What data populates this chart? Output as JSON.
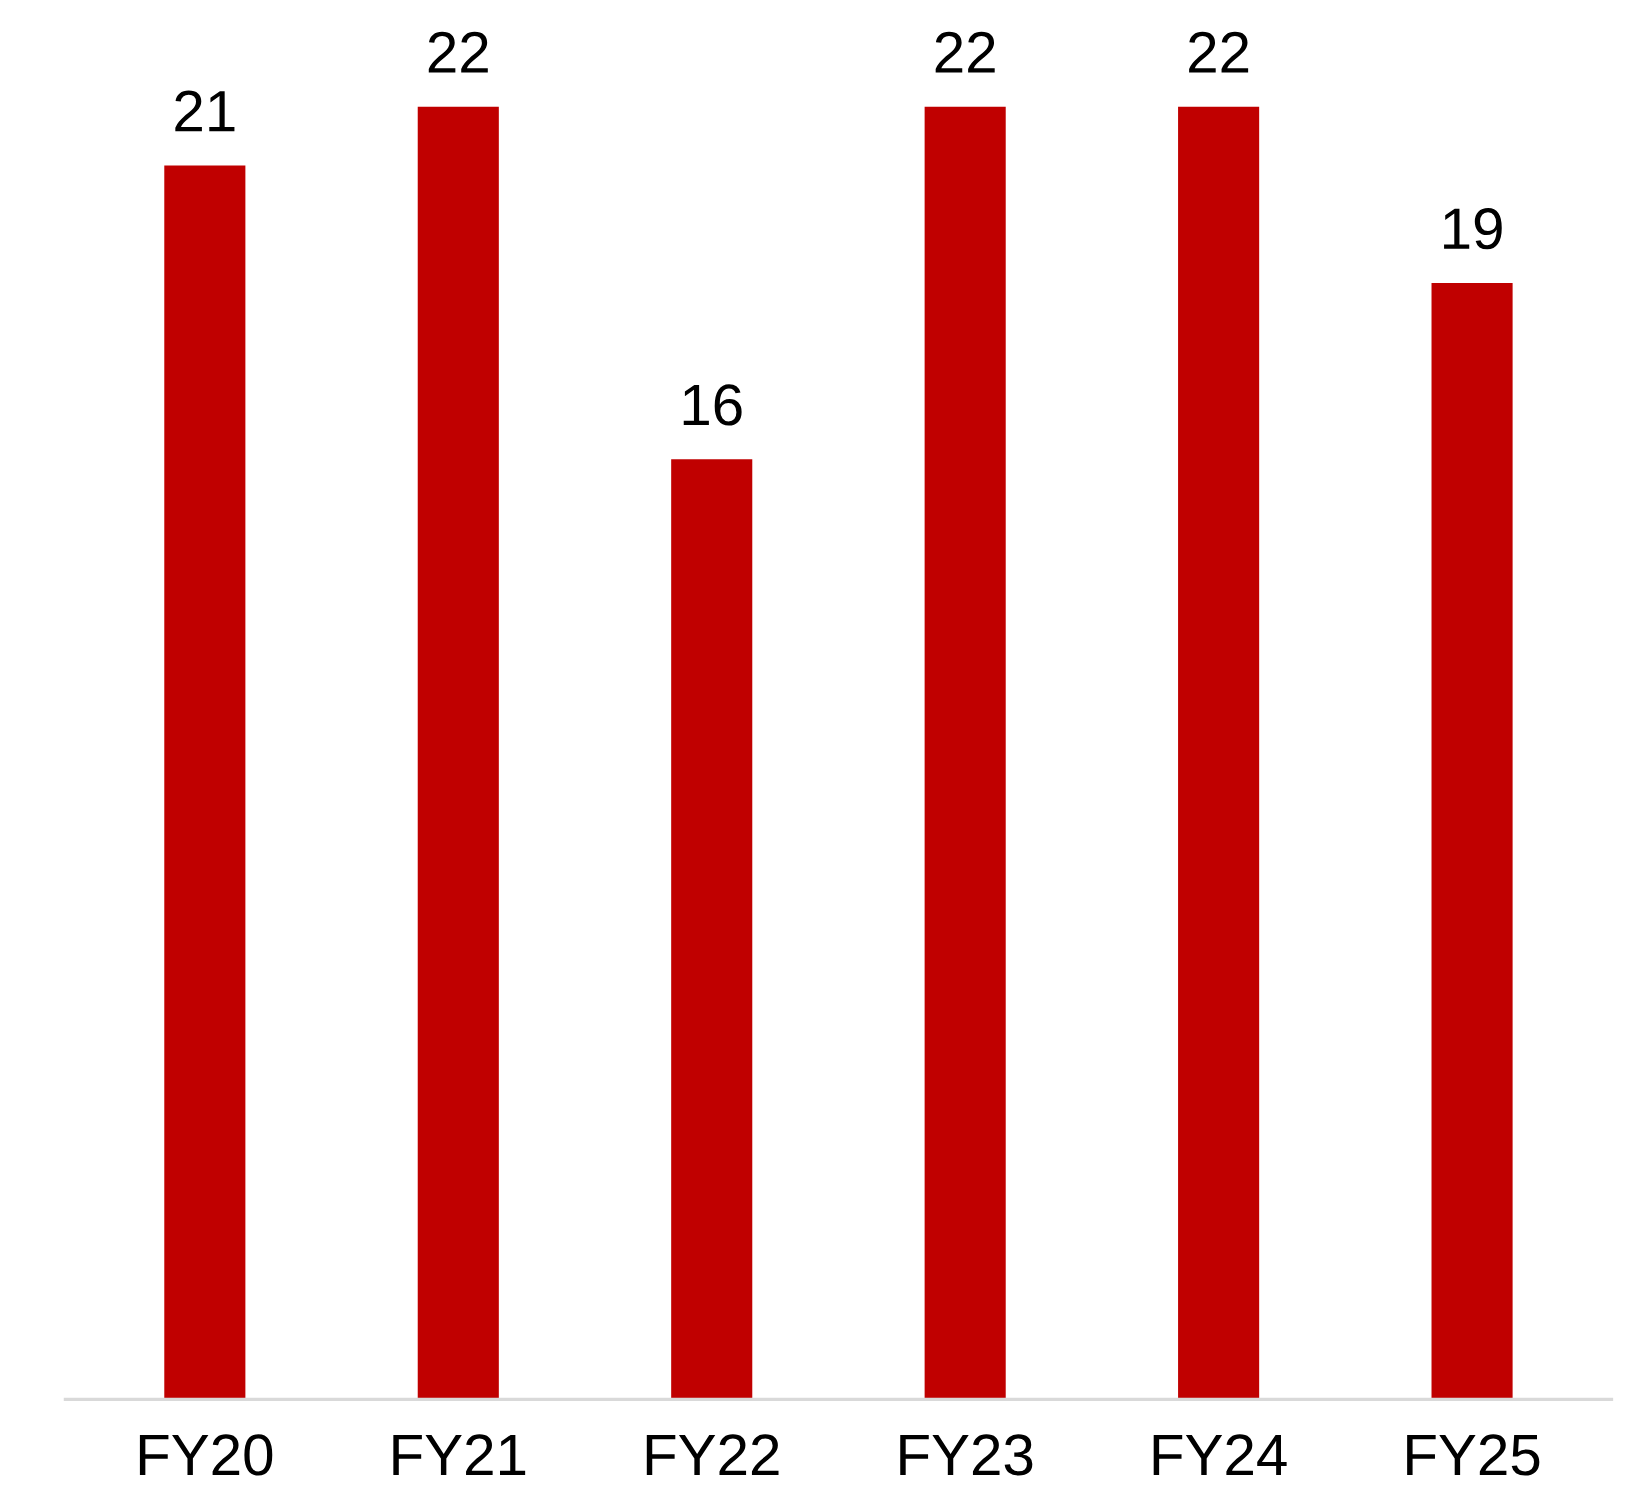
{
  "chart_data": {
    "type": "bar",
    "categories": [
      "FY20",
      "FY21",
      "FY22",
      "FY23",
      "FY24",
      "FY25"
    ],
    "values": [
      21,
      22,
      16,
      22,
      22,
      19
    ],
    "color": "#c00000",
    "data_labels": true,
    "grid": false,
    "tick_labels": "x"
  }
}
